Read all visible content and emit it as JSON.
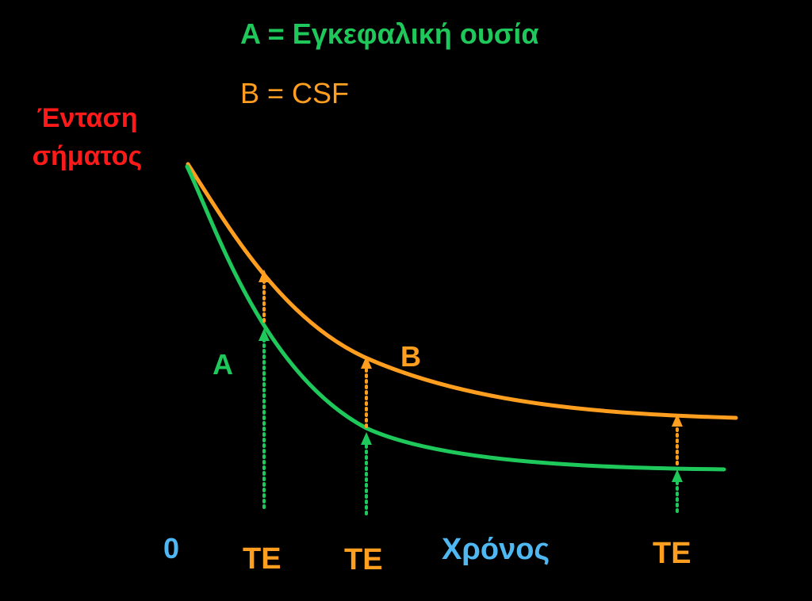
{
  "legend": {
    "a": {
      "text": "A = Εγκεφαλική ουσία",
      "color": "#1ec85a"
    },
    "b": {
      "text": "B = CSF",
      "color": "#ff9e1f"
    }
  },
  "y_axis": {
    "line1": "Ένταση",
    "line2": "σήματος",
    "color": "#ff1a1a"
  },
  "x_axis": {
    "origin": "0",
    "label": "Χρόνος",
    "color": "#4fb8f2"
  },
  "curves": {
    "a": {
      "label": "A",
      "color": "#1ec85a"
    },
    "b": {
      "label": "B",
      "color": "#ff9e1f"
    }
  },
  "te_markers": [
    {
      "label": "TE"
    },
    {
      "label": "TE"
    },
    {
      "label": "TE"
    }
  ],
  "te_color": "#ff9e1f"
}
